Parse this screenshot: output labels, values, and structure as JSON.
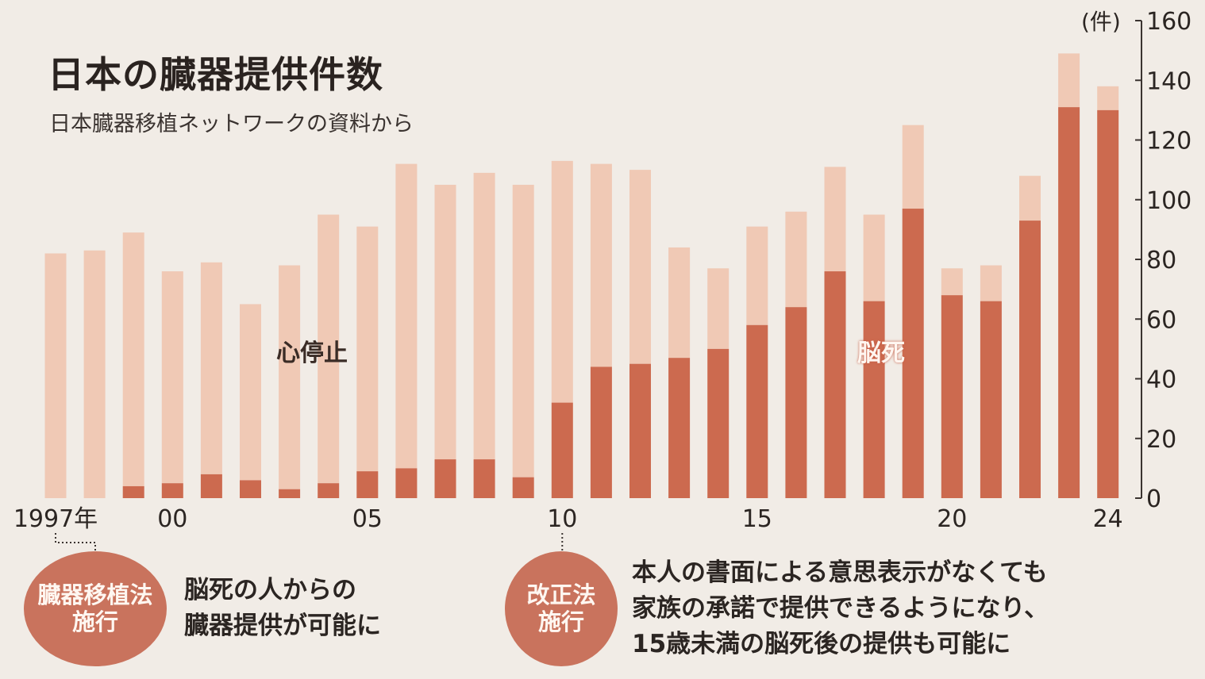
{
  "title": "日本の臓器提供件数",
  "subtitle": "日本臓器移植ネットワークの資料から",
  "category_labels": {
    "cardiac": "心停止",
    "brain_death": "脳死"
  },
  "colors": {
    "background": "#f1ece6",
    "cardiac": "#f0c9b5",
    "brain_death": "#cc6a4f",
    "badge": "#c9735d"
  },
  "annotations": [
    {
      "badge": [
        "臓器移植法",
        "施行"
      ],
      "text": [
        "脳死の人からの",
        "臓器提供が可能に"
      ]
    },
    {
      "badge": [
        "改正法",
        "施行"
      ],
      "text": [
        "本人の書面による意思表示がなくても",
        "家族の承諾で提供できるようになり、",
        "15歳未満の脳死後の提供も可能に"
      ]
    }
  ],
  "chart_data": {
    "type": "bar",
    "stacked": true,
    "x": [
      1997,
      1998,
      1999,
      2000,
      2001,
      2002,
      2003,
      2004,
      2005,
      2006,
      2007,
      2008,
      2009,
      2010,
      2011,
      2012,
      2013,
      2014,
      2015,
      2016,
      2017,
      2018,
      2019,
      2020,
      2021,
      2022,
      2023,
      2024
    ],
    "x_tick_labels": [
      {
        "x": 1997,
        "label": "1997年"
      },
      {
        "x": 2000,
        "label": "00"
      },
      {
        "x": 2005,
        "label": "05"
      },
      {
        "x": 2010,
        "label": "10"
      },
      {
        "x": 2015,
        "label": "15"
      },
      {
        "x": 2020,
        "label": "20"
      },
      {
        "x": 2024,
        "label": "24"
      }
    ],
    "series": [
      {
        "name": "脳死",
        "values": [
          0,
          0,
          4,
          5,
          8,
          6,
          3,
          5,
          9,
          10,
          13,
          13,
          7,
          32,
          44,
          45,
          47,
          50,
          58,
          64,
          76,
          66,
          97,
          68,
          66,
          93,
          131,
          130
        ]
      },
      {
        "name": "心停止",
        "values": [
          82,
          83,
          85,
          71,
          71,
          59,
          75,
          90,
          82,
          102,
          92,
          96,
          98,
          81,
          68,
          65,
          37,
          27,
          33,
          32,
          35,
          29,
          28,
          9,
          12,
          15,
          18,
          8
        ]
      }
    ],
    "ylabel": "(件)",
    "ylim": [
      0,
      160
    ],
    "yticks": [
      0,
      20,
      40,
      60,
      80,
      100,
      120,
      140,
      160
    ],
    "grid": false
  }
}
